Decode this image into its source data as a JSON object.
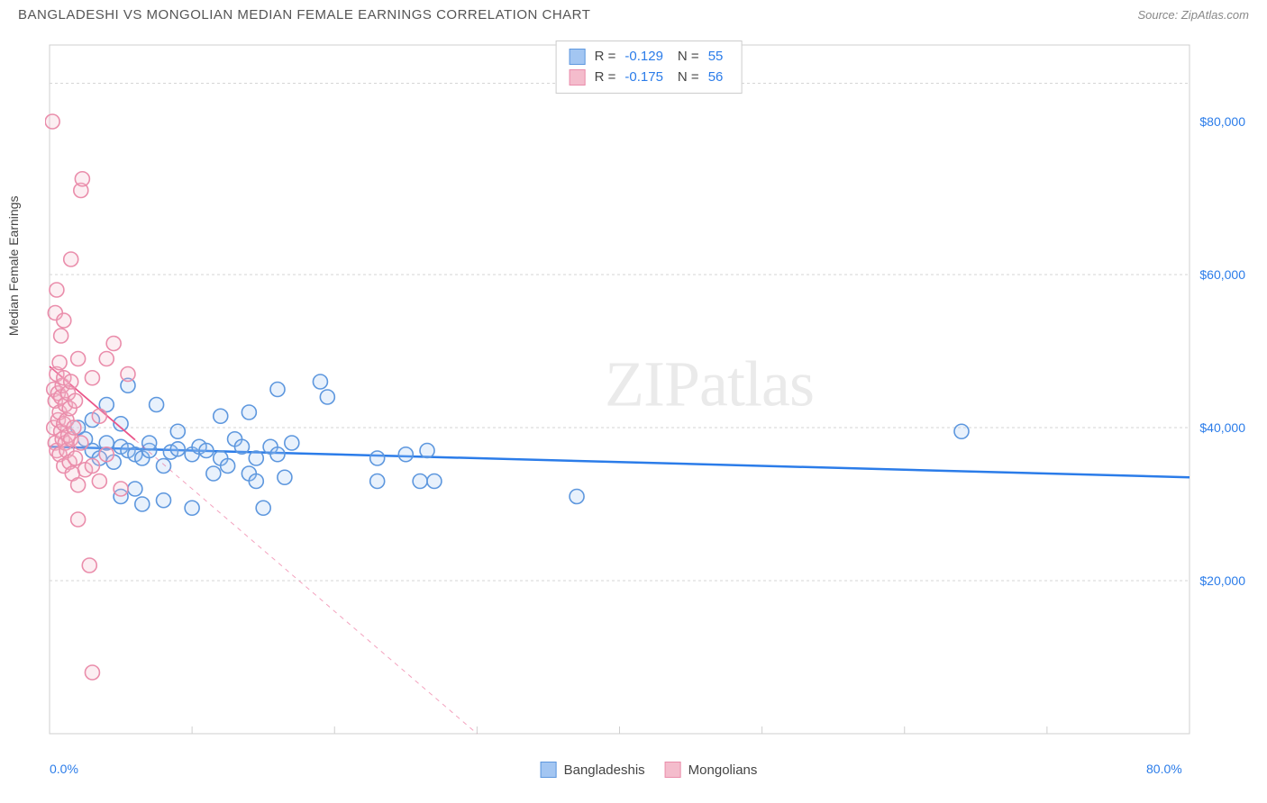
{
  "header": {
    "title": "BANGLADESHI VS MONGOLIAN MEDIAN FEMALE EARNINGS CORRELATION CHART",
    "source_prefix": "Source: ",
    "source": "ZipAtlas.com"
  },
  "watermark": {
    "part1": "ZIP",
    "part2": "atlas"
  },
  "chart": {
    "type": "scatter",
    "y_axis_label": "Median Female Earnings",
    "xlim": [
      0,
      80
    ],
    "ylim": [
      0,
      90000
    ],
    "x_ticks": [
      {
        "value": 0,
        "label": "0.0%"
      },
      {
        "value": 80,
        "label": "80.0%"
      }
    ],
    "y_ticks": [
      {
        "value": 20000,
        "label": "$20,000"
      },
      {
        "value": 40000,
        "label": "$40,000"
      },
      {
        "value": 60000,
        "label": "$60,000"
      },
      {
        "value": 80000,
        "label": "$80,000"
      }
    ],
    "gridline_y_values": [
      20000,
      40000,
      60000,
      85000
    ],
    "x_minor_ticks": [
      10,
      20,
      30,
      40,
      50,
      60,
      70
    ],
    "background_color": "#ffffff",
    "grid_color": "#d5d5d5",
    "axis_color": "#cfcfcf",
    "marker_radius": 8,
    "marker_stroke_width": 1.6,
    "marker_fill_opacity": 0.25,
    "series": [
      {
        "name": "Bangladeshis",
        "fill": "#a3c6f2",
        "stroke": "#5d97de",
        "trend_color": "#2b7ce9",
        "trend_width": 2.5,
        "trend_dash_after_data": false,
        "r": -0.129,
        "n": 55,
        "trend": {
          "x1": 0,
          "y1": 37500,
          "x2": 80,
          "y2": 33500
        },
        "points": [
          [
            2,
            40000
          ],
          [
            2.5,
            38500
          ],
          [
            3,
            37000
          ],
          [
            3,
            41000
          ],
          [
            3.5,
            36000
          ],
          [
            4,
            38000
          ],
          [
            4,
            43000
          ],
          [
            4.5,
            35500
          ],
          [
            5,
            37500
          ],
          [
            5,
            31000
          ],
          [
            5,
            40500
          ],
          [
            5.5,
            37000
          ],
          [
            5.5,
            45500
          ],
          [
            6,
            32000
          ],
          [
            6,
            36500
          ],
          [
            6.5,
            30000
          ],
          [
            6.5,
            36000
          ],
          [
            7,
            37000
          ],
          [
            7,
            38000
          ],
          [
            7.5,
            43000
          ],
          [
            8,
            35000
          ],
          [
            8,
            30500
          ],
          [
            8.5,
            36800
          ],
          [
            9,
            37200
          ],
          [
            9,
            39500
          ],
          [
            10,
            36500
          ],
          [
            10,
            29500
          ],
          [
            10.5,
            37500
          ],
          [
            11,
            37000
          ],
          [
            11.5,
            34000
          ],
          [
            12,
            36000
          ],
          [
            12,
            41500
          ],
          [
            12.5,
            35000
          ],
          [
            13,
            38500
          ],
          [
            13.5,
            37500
          ],
          [
            14,
            34000
          ],
          [
            14,
            42000
          ],
          [
            14.5,
            33000
          ],
          [
            14.5,
            36000
          ],
          [
            15,
            29500
          ],
          [
            15.5,
            37500
          ],
          [
            16,
            45000
          ],
          [
            16,
            36500
          ],
          [
            16.5,
            33500
          ],
          [
            17,
            38000
          ],
          [
            19,
            46000
          ],
          [
            19.5,
            44000
          ],
          [
            23,
            36000
          ],
          [
            23,
            33000
          ],
          [
            25,
            36500
          ],
          [
            26,
            33000
          ],
          [
            26.5,
            37000
          ],
          [
            27,
            33000
          ],
          [
            37,
            31000
          ],
          [
            64,
            39500
          ]
        ]
      },
      {
        "name": "Mongolians",
        "fill": "#f4bccc",
        "stroke": "#ea8dab",
        "trend_color": "#ea5589",
        "trend_width": 1.8,
        "trend_dash_after_data": true,
        "r": -0.175,
        "n": 56,
        "trend": {
          "x1": 0,
          "y1": 48000,
          "x2": 30,
          "y2": 0
        },
        "trend_solid_until_x": 6,
        "points": [
          [
            0.2,
            80000
          ],
          [
            0.3,
            40000
          ],
          [
            0.3,
            45000
          ],
          [
            0.4,
            38000
          ],
          [
            0.4,
            43500
          ],
          [
            0.4,
            55000
          ],
          [
            0.5,
            37000
          ],
          [
            0.5,
            47000
          ],
          [
            0.5,
            58000
          ],
          [
            0.6,
            41000
          ],
          [
            0.6,
            44500
          ],
          [
            0.7,
            36500
          ],
          [
            0.7,
            42000
          ],
          [
            0.7,
            48500
          ],
          [
            0.8,
            39500
          ],
          [
            0.8,
            44000
          ],
          [
            0.8,
            52000
          ],
          [
            0.9,
            38500
          ],
          [
            0.9,
            45500
          ],
          [
            1,
            35000
          ],
          [
            1,
            40500
          ],
          [
            1,
            46500
          ],
          [
            1,
            54000
          ],
          [
            1.1,
            38000
          ],
          [
            1.1,
            43000
          ],
          [
            1.2,
            37000
          ],
          [
            1.2,
            41000
          ],
          [
            1.3,
            39000
          ],
          [
            1.3,
            44500
          ],
          [
            1.4,
            35500
          ],
          [
            1.4,
            42500
          ],
          [
            1.5,
            38500
          ],
          [
            1.5,
            46000
          ],
          [
            1.5,
            62000
          ],
          [
            1.6,
            34000
          ],
          [
            1.7,
            40000
          ],
          [
            1.8,
            36000
          ],
          [
            1.8,
            43500
          ],
          [
            2,
            32500
          ],
          [
            2,
            28000
          ],
          [
            2,
            49000
          ],
          [
            2.2,
            38000
          ],
          [
            2.2,
            71000
          ],
          [
            2.3,
            72500
          ],
          [
            2.5,
            34500
          ],
          [
            2.8,
            22000
          ],
          [
            3,
            35000
          ],
          [
            3,
            46500
          ],
          [
            3.5,
            33000
          ],
          [
            3.5,
            41500
          ],
          [
            4,
            36500
          ],
          [
            4,
            49000
          ],
          [
            4.5,
            51000
          ],
          [
            5,
            32000
          ],
          [
            5.5,
            47000
          ],
          [
            3,
            8000
          ]
        ]
      }
    ],
    "legend": [
      {
        "label": "Bangladeshis",
        "fill": "#a3c6f2",
        "stroke": "#5d97de"
      },
      {
        "label": "Mongolians",
        "fill": "#f4bccc",
        "stroke": "#ea8dab"
      }
    ],
    "stats_box": [
      {
        "swatch_fill": "#a3c6f2",
        "swatch_stroke": "#5d97de",
        "r_label": "R =",
        "r": "-0.129",
        "n_label": "N =",
        "n": "55"
      },
      {
        "swatch_fill": "#f4bccc",
        "swatch_stroke": "#ea8dab",
        "r_label": "R =",
        "r": "-0.175",
        "n_label": "N =",
        "n": "56"
      }
    ]
  }
}
